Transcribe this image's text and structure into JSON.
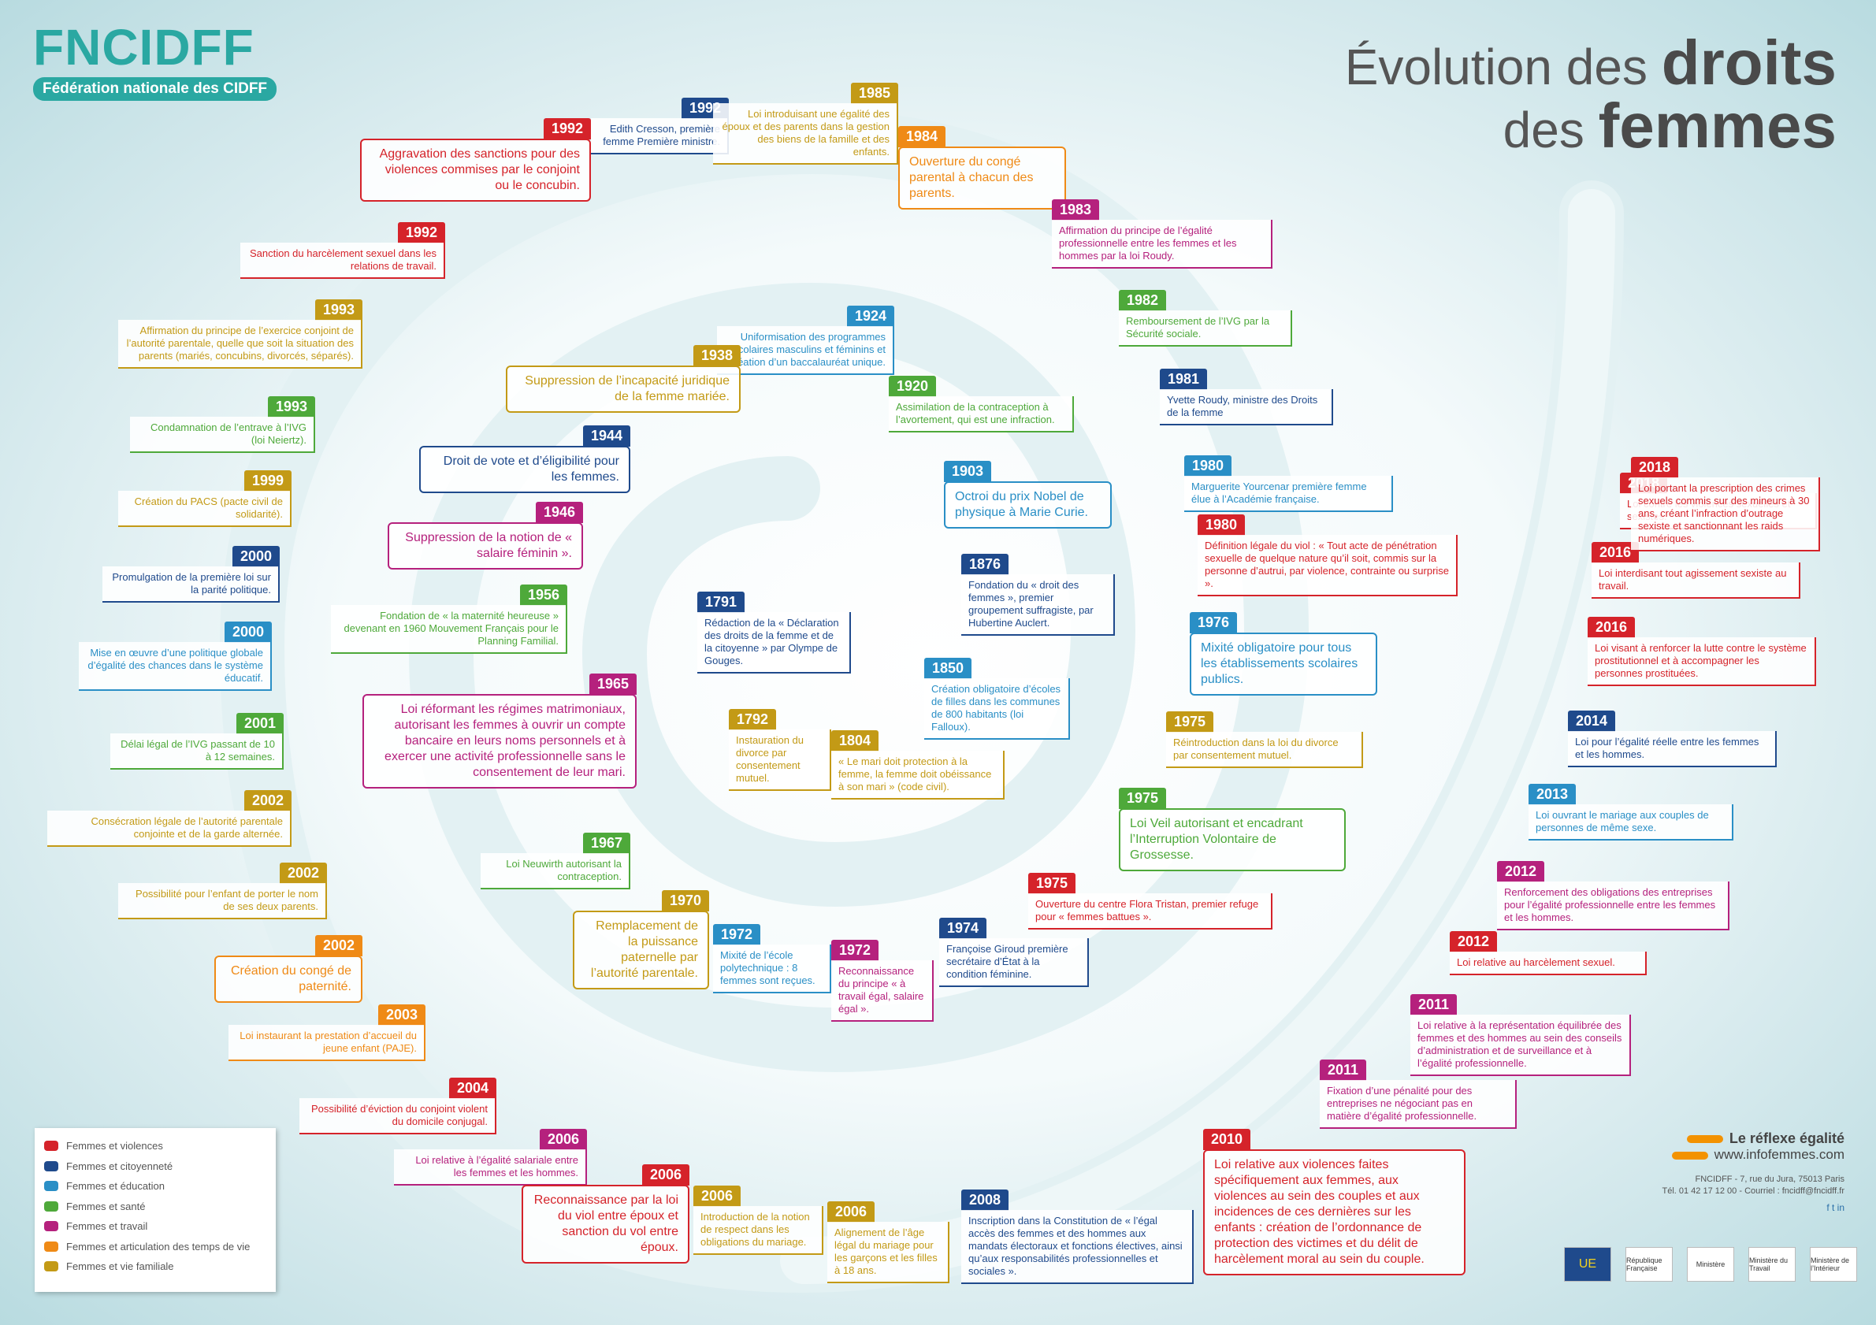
{
  "logo": {
    "word": "FNCIDFF",
    "subtitle": "Fédération nationale des CIDFF"
  },
  "title": {
    "prefix": "Évolution des",
    "bold1": "droits",
    "prefix2": "des",
    "bold2": "femmes"
  },
  "colors": {
    "violences": "#d5232a",
    "citoyennete": "#1f4a8c",
    "education": "#2a8fc6",
    "sante": "#4ea93a",
    "travail": "#b5217d",
    "articulation": "#ef8a16",
    "familiale": "#c39a16"
  },
  "events": [
    {
      "year": "1992",
      "cat": "violences",
      "text": "Aggravation des sanctions pour des violences commises par le conjoint ou le concubin.",
      "big": true
    },
    {
      "year": "1992",
      "cat": "citoyennete",
      "text": "Edith Cresson, première femme Première ministre."
    },
    {
      "year": "1985",
      "cat": "familiale",
      "text": "Loi introduisant une égalité des époux et des parents dans la gestion des biens de la famille et des enfants."
    },
    {
      "year": "1984",
      "cat": "articulation",
      "text": "Ouverture du congé parental à chacun des parents.",
      "big": true
    },
    {
      "year": "1983",
      "cat": "travail",
      "text": "Affirmation du principe de l’égalité professionnelle entre les femmes et les hommes par la loi Roudy."
    },
    {
      "year": "1992",
      "cat": "violences",
      "text": "Sanction du harcèlement sexuel dans les relations de travail."
    },
    {
      "year": "1993",
      "cat": "familiale",
      "text": "Affirmation du principe de l’exercice conjoint de l’autorité parentale, quelle que soit la situation des parents (mariés, concubins, divorcés, séparés)."
    },
    {
      "year": "1982",
      "cat": "sante",
      "text": "Remboursement de l’IVG par la Sécurité sociale."
    },
    {
      "year": "1924",
      "cat": "education",
      "text": "Uniformisation des programmes scolaires masculins et féminins et création d’un baccalauréat unique."
    },
    {
      "year": "1938",
      "cat": "familiale",
      "text": "Suppression de l’incapacité juridique de la femme mariée.",
      "big": true
    },
    {
      "year": "1920",
      "cat": "sante",
      "text": "Assimilation de la contraception à l’avortement, qui est une infraction."
    },
    {
      "year": "1981",
      "cat": "citoyennete",
      "text": "Yvette Roudy, ministre des Droits de la femme"
    },
    {
      "year": "1993",
      "cat": "sante",
      "text": "Condamnation de l’entrave à l’IVG (loi Neiertz)."
    },
    {
      "year": "1944",
      "cat": "citoyennete",
      "text": "Droit de vote et d’éligibilité pour les femmes.",
      "big": true
    },
    {
      "year": "1903",
      "cat": "education",
      "text": "Octroi du prix Nobel de physique à Marie Curie.",
      "big": true
    },
    {
      "year": "1980",
      "cat": "education",
      "text": "Marguerite Yourcenar première femme élue à l’Académie française."
    },
    {
      "year": "1999",
      "cat": "familiale",
      "text": "Création du PACS (pacte civil de solidarité)."
    },
    {
      "year": "1946",
      "cat": "travail",
      "text": "Suppression de la notion de « salaire féminin ».",
      "big": true
    },
    {
      "year": "1980",
      "cat": "violences",
      "text": "Définition légale du viol : « Tout acte de pénétration sexuelle de quelque nature qu’il soit, commis sur la personne d’autrui, par violence, contrainte ou surprise »."
    },
    {
      "year": "2000",
      "cat": "citoyennete",
      "text": "Promulgation de la première loi sur la parité politique."
    },
    {
      "year": "1876",
      "cat": "citoyennete",
      "text": "Fondation du « droit des femmes », premier groupement suffragiste, par Hubertine Auclert."
    },
    {
      "year": "1956",
      "cat": "sante",
      "text": "Fondation de « la maternité heureuse » devenant en 1960 Mouvement Français pour le Planning Familial."
    },
    {
      "year": "1791",
      "cat": "citoyennete",
      "text": "Rédaction de la « Déclaration des droits de la femme et de la citoyenne » par Olympe de Gouges."
    },
    {
      "year": "1976",
      "cat": "education",
      "text": "Mixité obligatoire pour tous les établissements scolaires publics.",
      "big": true
    },
    {
      "year": "2000",
      "cat": "education",
      "text": "Mise en œuvre d’une politique globale d’égalité des chances dans le système éducatif."
    },
    {
      "year": "1850",
      "cat": "education",
      "text": "Création obligatoire d’écoles de filles dans les communes de 800 habitants (loi Falloux)."
    },
    {
      "year": "1965",
      "cat": "travail",
      "text": "Loi réformant les régimes matrimoniaux, autorisant les femmes à ouvrir un compte bancaire en leurs noms personnels et à exercer une activité professionnelle sans le consentement de leur mari.",
      "big": true
    },
    {
      "year": "1792",
      "cat": "familiale",
      "text": "Instauration du divorce par consentement mutuel."
    },
    {
      "year": "1804",
      "cat": "familiale",
      "text": "« Le mari doit protection à la femme, la femme doit obéissance à son mari » (code civil)."
    },
    {
      "year": "1975",
      "cat": "familiale",
      "text": "Réintroduction dans la loi du divorce par consentement mutuel."
    },
    {
      "year": "2001",
      "cat": "sante",
      "text": "Délai légal de l’IVG passant de 10 à 12 semaines."
    },
    {
      "year": "2002",
      "cat": "familiale",
      "text": "Consécration légale de l’autorité parentale conjointe et de la garde alternée."
    },
    {
      "year": "1975",
      "cat": "sante",
      "text": "Loi Veil autorisant et encadrant l’Interruption Volontaire de Grossesse.",
      "big": true
    },
    {
      "year": "1967",
      "cat": "sante",
      "text": "Loi Neuwirth autorisant la contraception."
    },
    {
      "year": "2002",
      "cat": "familiale",
      "text": "Possibilité pour l’enfant de porter le nom de ses deux parents."
    },
    {
      "year": "1975",
      "cat": "violences",
      "text": "Ouverture du centre Flora Tristan, premier refuge pour « femmes battues »."
    },
    {
      "year": "1970",
      "cat": "familiale",
      "text": "Remplacement de la puissance paternelle par l’autorité parentale.",
      "big": true
    },
    {
      "year": "1972",
      "cat": "education",
      "text": "Mixité de l’école polytechnique : 8 femmes sont reçues."
    },
    {
      "year": "1972",
      "cat": "travail",
      "text": "Reconnaissance du principe « à travail égal, salaire égal »."
    },
    {
      "year": "1974",
      "cat": "citoyennete",
      "text": "Françoise Giroud première secrétaire d’État à la condition féminine."
    },
    {
      "year": "2002",
      "cat": "articulation",
      "text": "Création du congé de paternité.",
      "big": true
    },
    {
      "year": "2003",
      "cat": "articulation",
      "text": "Loi instaurant la prestation d’accueil du jeune enfant (PAJE)."
    },
    {
      "year": "2004",
      "cat": "violences",
      "text": "Possibilité d’éviction du conjoint violent du domicile conjugal."
    },
    {
      "year": "2006",
      "cat": "travail",
      "text": "Loi relative à l’égalité salariale entre les femmes et les hommes."
    },
    {
      "year": "2006",
      "cat": "violences",
      "text": "Reconnaissance par la loi du viol entre époux et sanction du vol entre époux.",
      "big": true
    },
    {
      "year": "2006",
      "cat": "familiale",
      "text": "Introduction de la notion de respect dans les obligations du mariage."
    },
    {
      "year": "2006",
      "cat": "familiale",
      "text": "Alignement de l’âge légal du mariage pour les garçons et les filles à 18 ans."
    },
    {
      "year": "2008",
      "cat": "citoyennete",
      "text": "Inscription dans la Constitution de « l’égal accès des femmes et des hommes aux mandats électoraux et fonctions électives, ainsi qu’aux responsabilités professionnelles et sociales »."
    },
    {
      "year": "2010",
      "cat": "violences",
      "text": "Loi relative aux violences faites spécifiquement aux femmes, aux violences au sein des couples et aux incidences de ces dernières sur les enfants : création de l’ordonnance de protection des victimes et du délit de harcèlement moral au sein du couple.",
      "big": true
    },
    {
      "year": "2011",
      "cat": "travail",
      "text": "Fixation d’une pénalité pour des entreprises ne négociant pas en matière d’égalité professionnelle."
    },
    {
      "year": "2011",
      "cat": "travail",
      "text": "Loi relative à la représentation équilibrée des femmes et des hommes au sein des conseils d’administration et de surveillance et à l’égalité professionnelle."
    },
    {
      "year": "2012",
      "cat": "violences",
      "text": "Loi relative au harcèlement sexuel."
    },
    {
      "year": "2012",
      "cat": "travail",
      "text": "Renforcement des obligations des entreprises pour l’égalité professionnelle entre les femmes et les hommes."
    },
    {
      "year": "2013",
      "cat": "education",
      "text": "Loi ouvrant le mariage aux couples de personnes de même sexe."
    },
    {
      "year": "2014",
      "cat": "citoyennete",
      "text": "Loi pour l’égalité réelle entre les femmes et les hommes."
    },
    {
      "year": "2016",
      "cat": "violences",
      "text": "Loi visant à renforcer la lutte contre le système prostitutionnel et à accompagner les personnes prostituées."
    },
    {
      "year": "2016",
      "cat": "violences",
      "text": "Loi interdisant tout agissement sexiste au travail."
    },
    {
      "year": "2018",
      "cat": "violences",
      "text": "Loi contre les violences sexuelles et sexistes."
    },
    {
      "year": "2018",
      "cat": "violences",
      "text": "Loi portant la prescription des crimes sexuels commis sur des mineurs à 30 ans, créant l’infraction d’outrage sexiste et sanctionnant les raids numériques."
    }
  ],
  "legend": [
    {
      "cat": "violences",
      "label": "Femmes et violences"
    },
    {
      "cat": "citoyennete",
      "label": "Femmes et citoyenneté"
    },
    {
      "cat": "education",
      "label": "Femmes et éducation"
    },
    {
      "cat": "sante",
      "label": "Femmes et santé"
    },
    {
      "cat": "travail",
      "label": "Femmes et travail"
    },
    {
      "cat": "articulation",
      "label": "Femmes et articulation des temps de vie"
    },
    {
      "cat": "familiale",
      "label": "Femmes et vie familiale"
    }
  ],
  "footer": {
    "reflex": "Le réflexe égalité",
    "site": "www.infofemmes.com",
    "address": "FNCIDFF - 7, rue du Jura, 75013 Paris",
    "contact": "Tél. 01 42 17 12 00 - Courriel : fncidff@fncidff.fr",
    "social": "f  t  in"
  },
  "partners": [
    "UE",
    "République Française",
    "Ministère",
    "Ministère du Travail",
    "Ministère de l’Intérieur"
  ]
}
